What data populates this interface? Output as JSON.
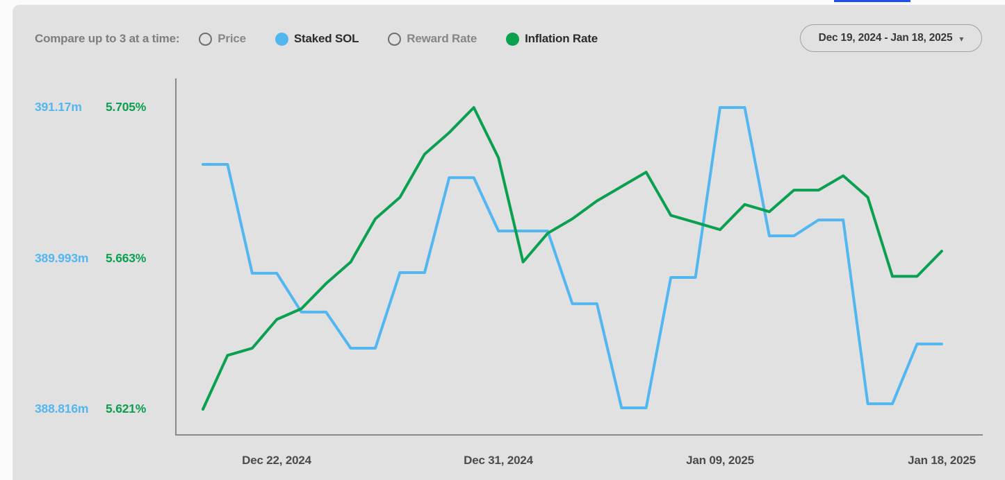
{
  "page": {
    "background_color": "#fbfbfb",
    "panel_color": "#e1e1e1",
    "accent_bar_color": "#1d4ff2"
  },
  "toolbar": {
    "compare_label": "Compare up to 3 at a time:",
    "metrics": [
      {
        "label": "Price",
        "selected": false,
        "color": null
      },
      {
        "label": "Staked SOL",
        "selected": true,
        "color": "#52b6f0"
      },
      {
        "label": "Reward Rate",
        "selected": false,
        "color": null
      },
      {
        "label": "Inflation Rate",
        "selected": true,
        "color": "#0aa04f"
      }
    ],
    "date_range": "Dec 19, 2024 - Jan 18, 2025",
    "chevron_glyph": "▾"
  },
  "chart_data": {
    "type": "line",
    "title": "",
    "grid": false,
    "legend_position": "top",
    "x": [
      "Dec 19, 2024",
      "Dec 20, 2024",
      "Dec 21, 2024",
      "Dec 22, 2024",
      "Dec 23, 2024",
      "Dec 24, 2024",
      "Dec 25, 2024",
      "Dec 26, 2024",
      "Dec 27, 2024",
      "Dec 28, 2024",
      "Dec 29, 2024",
      "Dec 30, 2024",
      "Dec 31, 2024",
      "Jan 01, 2025",
      "Jan 02, 2025",
      "Jan 03, 2025",
      "Jan 04, 2025",
      "Jan 05, 2025",
      "Jan 06, 2025",
      "Jan 07, 2025",
      "Jan 08, 2025",
      "Jan 09, 2025",
      "Jan 10, 2025",
      "Jan 11, 2025",
      "Jan 12, 2025",
      "Jan 13, 2025",
      "Jan 14, 2025",
      "Jan 15, 2025",
      "Jan 16, 2025",
      "Jan 17, 2025",
      "Jan 18, 2025"
    ],
    "x_ticks": [
      "Dec 22, 2024",
      "Dec 31, 2024",
      "Jan 09, 2025",
      "Jan 18, 2025"
    ],
    "x_tick_indices": [
      3,
      12,
      21,
      30
    ],
    "y_axes": {
      "staked_sol": {
        "name": "Staked SOL",
        "color": "#52b6f0",
        "unit": "million SOL",
        "ticks": [
          "391.17m",
          "389.993m",
          "388.816m"
        ],
        "tick_values": [
          391.17,
          389.993,
          388.816
        ]
      },
      "inflation_rate": {
        "name": "Inflation Rate",
        "color": "#0aa04f",
        "unit": "%",
        "ticks": [
          "5.705%",
          "5.663%",
          "5.621%"
        ],
        "tick_values": [
          5.705,
          5.663,
          5.621
        ]
      }
    },
    "series": [
      {
        "name": "Staked SOL",
        "axis": "staked_sol",
        "color": "#52b6f0",
        "values": [
          390.726,
          390.726,
          389.877,
          389.877,
          389.574,
          389.574,
          389.292,
          389.292,
          389.882,
          389.882,
          390.623,
          390.623,
          390.207,
          390.207,
          390.207,
          389.639,
          389.639,
          388.827,
          388.827,
          389.844,
          389.844,
          391.17,
          391.17,
          390.169,
          390.169,
          390.293,
          390.293,
          388.859,
          388.859,
          389.325,
          389.325
        ]
      },
      {
        "name": "Inflation Rate",
        "axis": "inflation_rate",
        "color": "#0aa04f",
        "values": [
          5.621,
          5.636,
          5.638,
          5.646,
          5.649,
          5.656,
          5.662,
          5.674,
          5.68,
          5.692,
          5.698,
          5.705,
          5.691,
          5.662,
          5.67,
          5.674,
          5.679,
          5.683,
          5.687,
          5.675,
          5.673,
          5.671,
          5.678,
          5.676,
          5.682,
          5.682,
          5.686,
          5.68,
          5.658,
          5.658,
          5.665
        ]
      }
    ]
  }
}
